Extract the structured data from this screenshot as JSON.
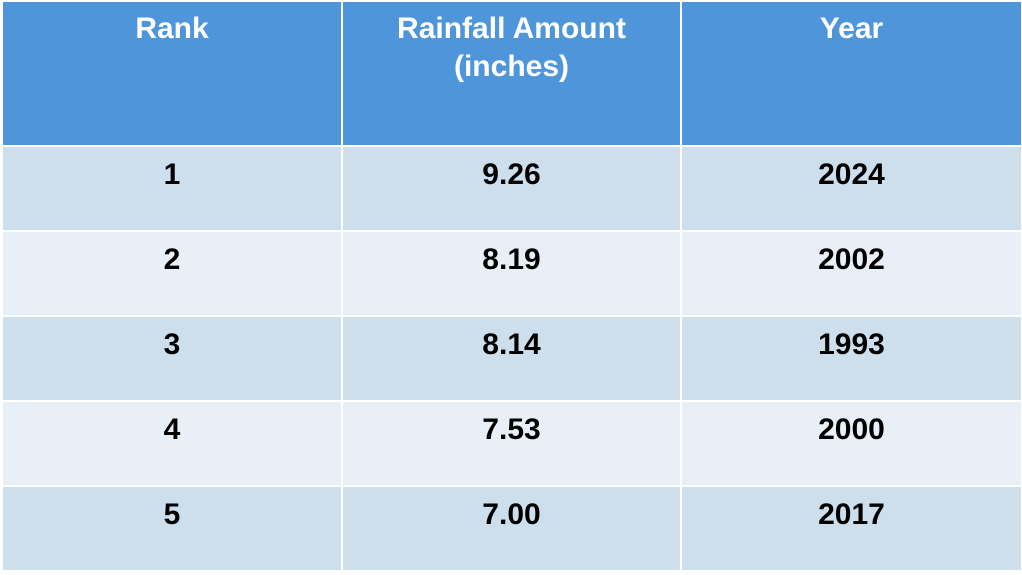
{
  "table": {
    "headers": {
      "rank": "Rank",
      "amount_line1": "Rainfall Amount",
      "amount_line2": "(inches)",
      "year": "Year"
    },
    "rows": [
      {
        "rank": "1",
        "amount": "9.26",
        "year": "2024"
      },
      {
        "rank": "2",
        "amount": "8.19",
        "year": "2002"
      },
      {
        "rank": "3",
        "amount": "8.14",
        "year": "1993"
      },
      {
        "rank": "4",
        "amount": "7.53",
        "year": "2000"
      },
      {
        "rank": "5",
        "amount": "7.00",
        "year": "2017"
      }
    ]
  },
  "colors": {
    "header_bg": "#4e95d9",
    "row_odd_bg": "#cddeed",
    "row_even_bg": "#e8eff7",
    "header_text": "#ffffff",
    "body_text": "#000000"
  }
}
